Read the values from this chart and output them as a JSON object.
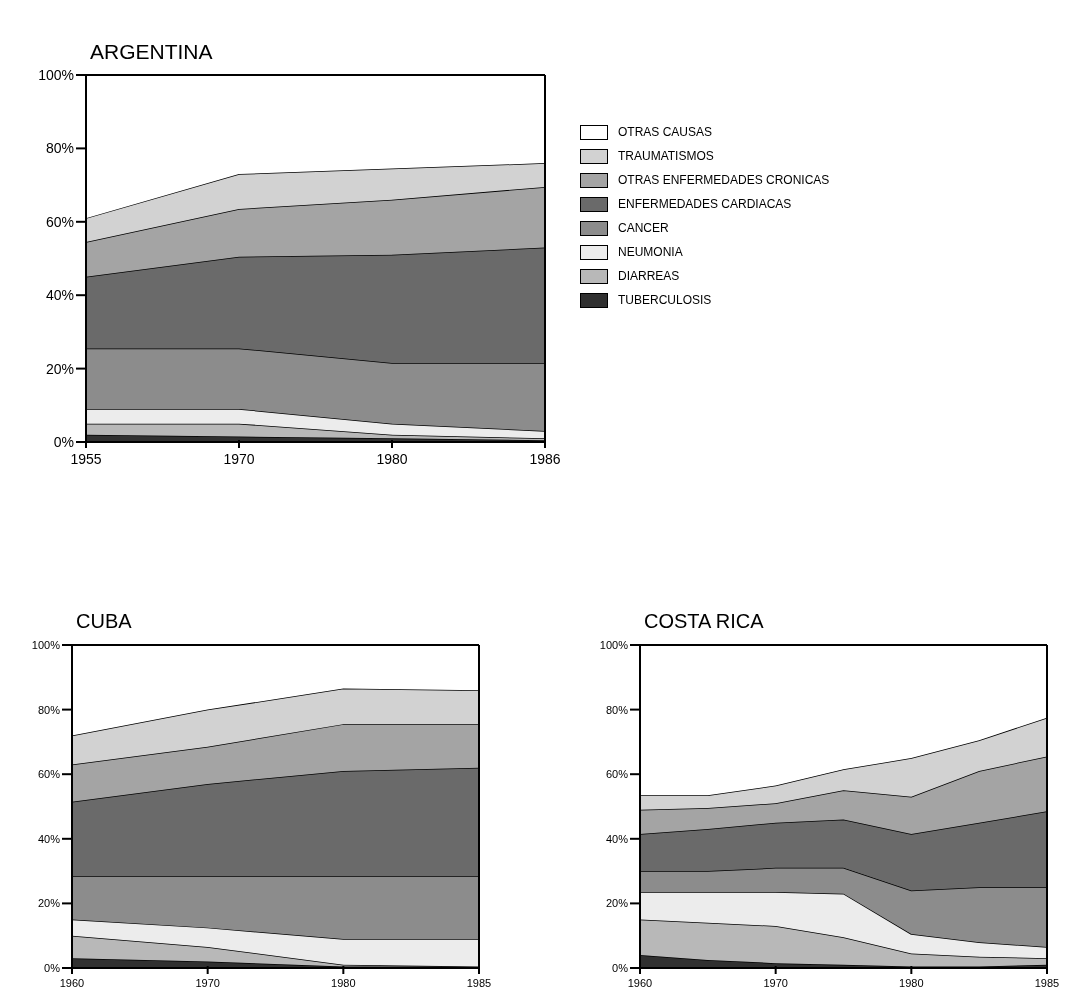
{
  "chart_data": [
    {
      "type": "area",
      "title": "ARGENTINA",
      "stacked": true,
      "legend": "right",
      "categories": [
        "1955",
        "1970",
        "1980",
        "1986"
      ],
      "ylim": [
        0,
        100
      ],
      "yticks": [
        {
          "value": 0,
          "label": "0%"
        },
        {
          "value": 20,
          "label": "20%"
        },
        {
          "value": 40,
          "label": "40%"
        },
        {
          "value": 60,
          "label": "60%"
        },
        {
          "value": 80,
          "label": "80%"
        },
        {
          "value": 100,
          "label": "100%"
        }
      ],
      "series": [
        {
          "name": "TUBERCULOSIS",
          "color": "#303030",
          "values": [
            2,
            1.5,
            1,
            0.5
          ]
        },
        {
          "name": "DIARREAS",
          "color": "#b8b8b8",
          "values": [
            3,
            3.5,
            1,
            0.5
          ]
        },
        {
          "name": "NEUMONIA",
          "color": "#ececec",
          "values": [
            4,
            4,
            3,
            2
          ]
        },
        {
          "name": "CANCER",
          "color": "#8c8c8c",
          "values": [
            16.5,
            16.5,
            16.5,
            18.5
          ]
        },
        {
          "name": "ENFERMEDADES CARDIACAS",
          "color": "#6a6a6a",
          "values": [
            19.5,
            25,
            29.5,
            31.5
          ]
        },
        {
          "name": "OTRAS ENFERMEDADES CRONICAS",
          "color": "#a4a4a4",
          "values": [
            9.5,
            13,
            15,
            16.5
          ]
        },
        {
          "name": "TRAUMATISMOS",
          "color": "#d2d2d2",
          "values": [
            6.5,
            9.5,
            8.5,
            6.5
          ]
        },
        {
          "name": "OTRAS CAUSAS",
          "color": "#ffffff",
          "values": [
            39,
            27,
            25.5,
            24
          ]
        }
      ]
    },
    {
      "type": "area",
      "title": "CUBA",
      "stacked": true,
      "categories": [
        "1960",
        "1970",
        "1980",
        "1985"
      ],
      "ylim": [
        0,
        100
      ],
      "yticks": [
        {
          "value": 0,
          "label": "0%"
        },
        {
          "value": 20,
          "label": "20%"
        },
        {
          "value": 40,
          "label": "40%"
        },
        {
          "value": 60,
          "label": "60%"
        },
        {
          "value": 80,
          "label": "80%"
        },
        {
          "value": 100,
          "label": "100%"
        }
      ],
      "series": [
        {
          "color": "#303030",
          "values": [
            3,
            2,
            0.5,
            0.5
          ]
        },
        {
          "color": "#b8b8b8",
          "values": [
            7,
            4.5,
            0.5,
            0
          ]
        },
        {
          "color": "#ececec",
          "values": [
            5,
            6,
            8,
            8.5
          ]
        },
        {
          "color": "#8c8c8c",
          "values": [
            13.5,
            16,
            19.5,
            19.5
          ]
        },
        {
          "color": "#6a6a6a",
          "values": [
            23,
            28.5,
            32.5,
            33.5
          ]
        },
        {
          "color": "#a4a4a4",
          "values": [
            11.5,
            11.5,
            14.5,
            13.5
          ]
        },
        {
          "color": "#d2d2d2",
          "values": [
            9,
            11.5,
            11,
            10.5
          ]
        },
        {
          "color": "#ffffff",
          "values": [
            28,
            20,
            13.5,
            14
          ]
        }
      ]
    },
    {
      "type": "area",
      "title": "COSTA RICA",
      "stacked": true,
      "categories": [
        "1960",
        null,
        "1970",
        null,
        "1980",
        null,
        "1985"
      ],
      "ylim": [
        0,
        100
      ],
      "yticks": [
        {
          "value": 0,
          "label": "0%"
        },
        {
          "value": 20,
          "label": "20%"
        },
        {
          "value": 40,
          "label": "40%"
        },
        {
          "value": 60,
          "label": "60%"
        },
        {
          "value": 80,
          "label": "80%"
        },
        {
          "value": 100,
          "label": "100%"
        }
      ],
      "series": [
        {
          "color": "#303030",
          "values": [
            4,
            2.5,
            1.5,
            1,
            0.5,
            0.5,
            1
          ]
        },
        {
          "color": "#b8b8b8",
          "values": [
            11,
            11.5,
            11.5,
            8.5,
            4,
            3,
            2
          ]
        },
        {
          "color": "#ececec",
          "values": [
            8.5,
            9.5,
            10.5,
            13.5,
            6,
            4.5,
            3.5
          ]
        },
        {
          "color": "#8c8c8c",
          "values": [
            6.5,
            6.5,
            7.5,
            8,
            13.5,
            17,
            18.5
          ]
        },
        {
          "color": "#6a6a6a",
          "values": [
            11.5,
            13,
            14,
            15,
            17.5,
            20,
            23.5
          ]
        },
        {
          "color": "#a4a4a4",
          "values": [
            7.5,
            6.5,
            6,
            9,
            11.5,
            16,
            17
          ]
        },
        {
          "color": "#d2d2d2",
          "values": [
            4.5,
            4,
            5.5,
            6.5,
            12,
            9.5,
            12
          ]
        },
        {
          "color": "#ffffff",
          "values": [
            46.5,
            46.5,
            43.5,
            38.5,
            35,
            29.5,
            22.5
          ]
        }
      ]
    }
  ]
}
